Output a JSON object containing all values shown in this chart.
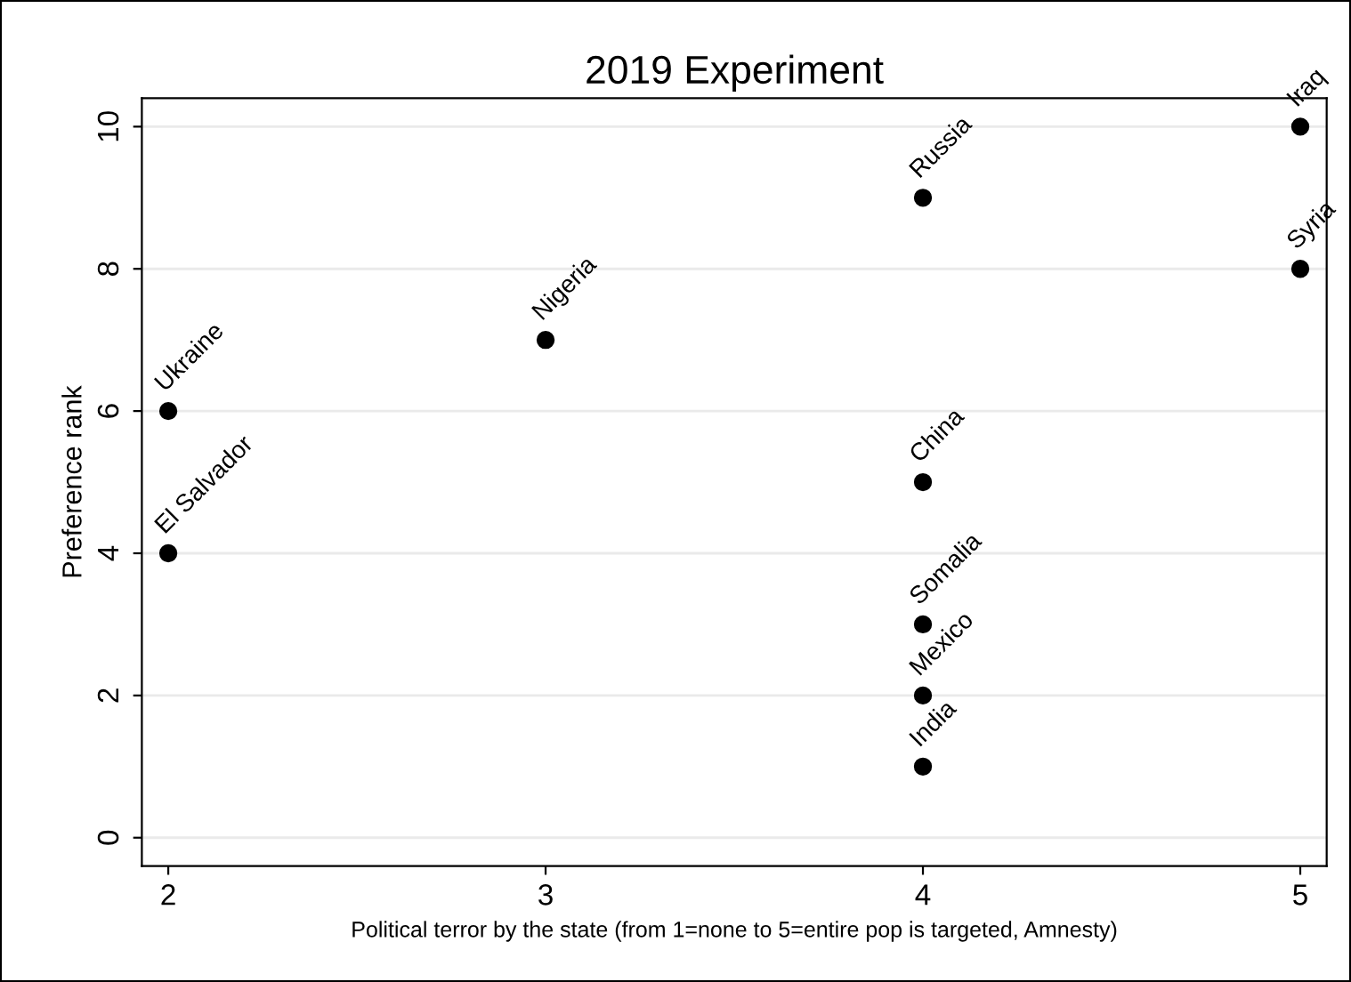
{
  "chart_data": {
    "type": "scatter",
    "title": "2019 Experiment",
    "xlabel": "Political terror by the state (from 1=none to 5=entire pop is targeted, Amnesty)",
    "ylabel": "Preference rank",
    "series": [
      {
        "color": "#000000",
        "x": [
          2,
          2,
          3,
          4,
          4,
          4,
          4,
          4,
          5,
          5
        ],
        "values": [
          6,
          4,
          7,
          9,
          5,
          3,
          2,
          1,
          10,
          8
        ]
      }
    ],
    "annotations": [
      {
        "text": "Ukraine",
        "x": 2,
        "y": 6
      },
      {
        "text": "El Salvador",
        "x": 2,
        "y": 4
      },
      {
        "text": "Nigeria",
        "x": 3,
        "y": 7
      },
      {
        "text": "Russia",
        "x": 4,
        "y": 9
      },
      {
        "text": "China",
        "x": 4,
        "y": 5
      },
      {
        "text": "Somalia",
        "x": 4,
        "y": 3
      },
      {
        "text": "Mexico",
        "x": 4,
        "y": 2
      },
      {
        "text": "India",
        "x": 4,
        "y": 1
      },
      {
        "text": "Iraq",
        "x": 5,
        "y": 10
      },
      {
        "text": "Syria",
        "x": 5,
        "y": 8
      }
    ],
    "xlim": [
      1.93,
      5.07
    ],
    "ylim": [
      -0.4,
      10.4
    ],
    "xticks": [
      2,
      3,
      4,
      5
    ],
    "yticks": [
      0,
      2,
      4,
      6,
      8,
      10
    ],
    "grid": "y",
    "marker": "circle"
  }
}
